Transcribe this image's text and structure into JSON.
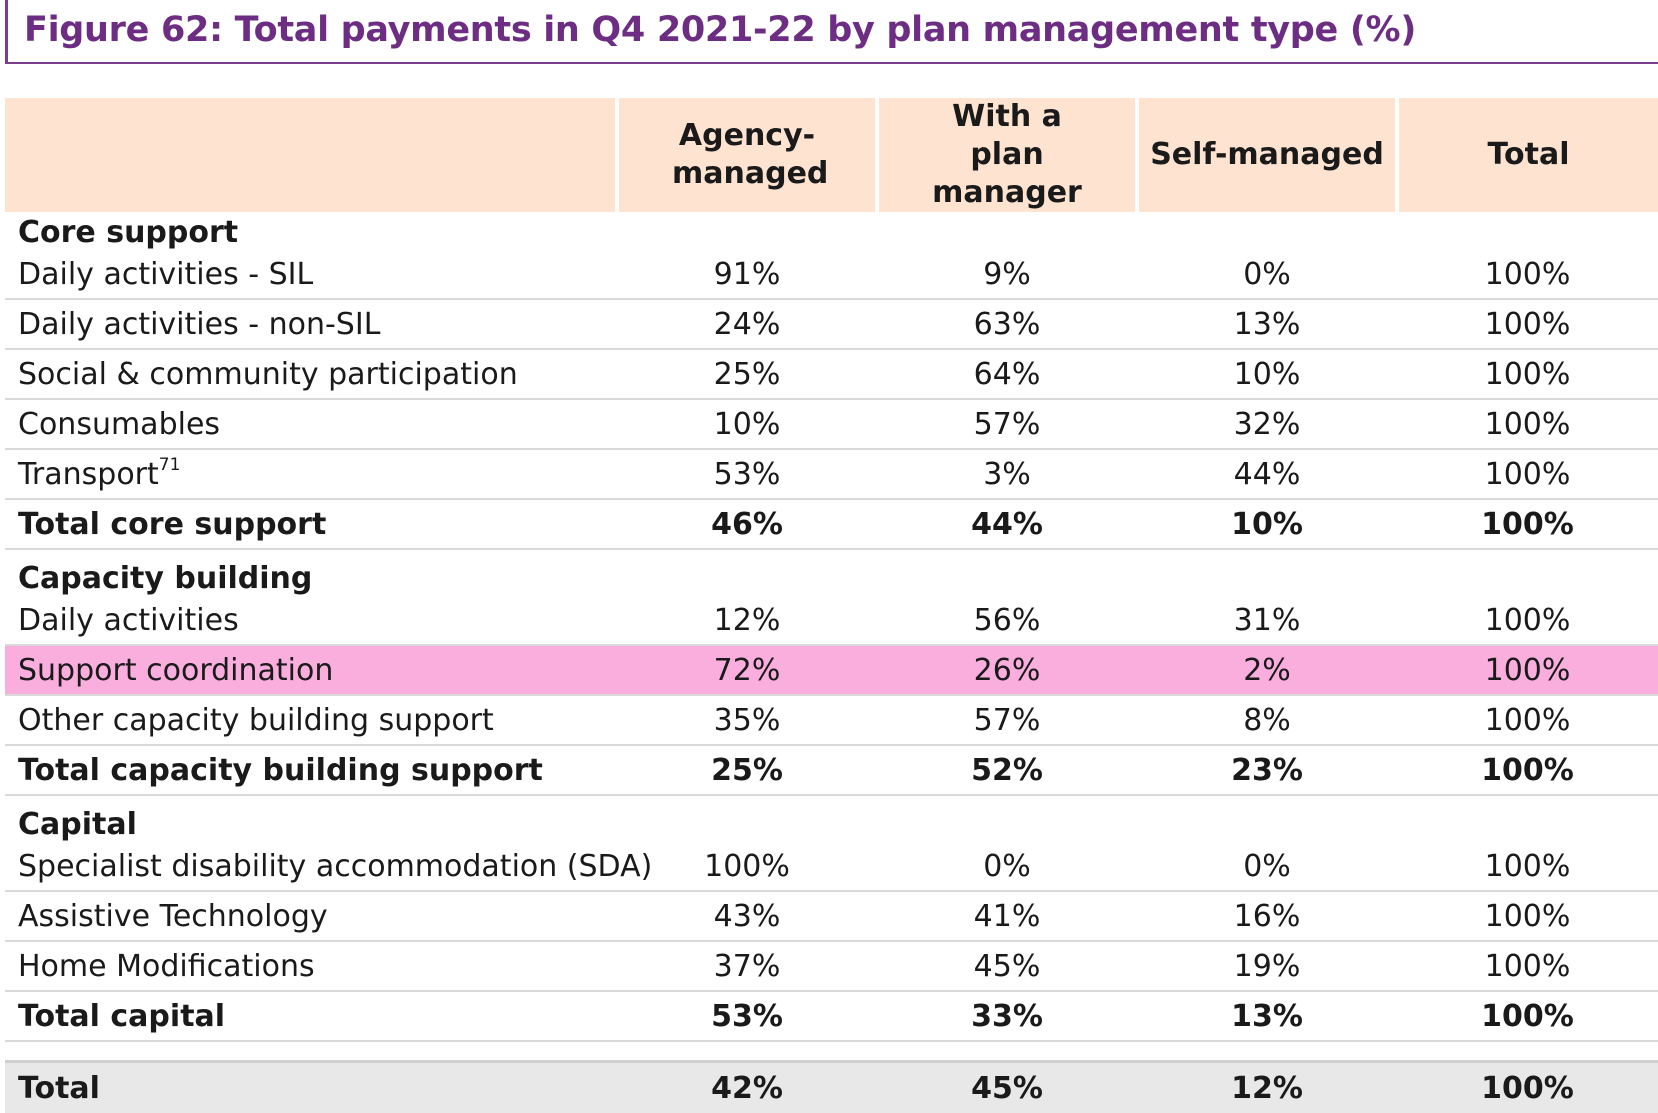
{
  "title": "Figure 62: Total payments in Q4 2021-22 by plan management type (%)",
  "header": {
    "blank": "",
    "agency": "Agency-managed",
    "planmgr": "With a plan manager",
    "self": "Self-managed",
    "total": "Total"
  },
  "sections": [
    {
      "heading": "Core support",
      "rows": [
        {
          "label": "Daily activities - SIL",
          "agency": "91%",
          "planmgr": "9%",
          "self": "0%",
          "total": "100%"
        },
        {
          "label": "Daily activities - non-SIL",
          "agency": "24%",
          "planmgr": "63%",
          "self": "13%",
          "total": "100%"
        },
        {
          "label": "Social & community participation",
          "agency": "25%",
          "planmgr": "64%",
          "self": "10%",
          "total": "100%"
        },
        {
          "label": "Consumables",
          "agency": "10%",
          "planmgr": "57%",
          "self": "32%",
          "total": "100%"
        },
        {
          "label": "Transport",
          "footnote": "71",
          "agency": "53%",
          "planmgr": "3%",
          "self": "44%",
          "total": "100%"
        }
      ],
      "total": {
        "label": "Total core support",
        "agency": "46%",
        "planmgr": "44%",
        "self": "10%",
        "total": "100%"
      }
    },
    {
      "heading": "Capacity building",
      "rows": [
        {
          "label": "Daily activities",
          "agency": "12%",
          "planmgr": "56%",
          "self": "31%",
          "total": "100%"
        },
        {
          "label": "Support coordination",
          "agency": "72%",
          "planmgr": "26%",
          "self": "2%",
          "total": "100%"
        },
        {
          "label": "Other capacity building support",
          "agency": "35%",
          "planmgr": "57%",
          "self": "8%",
          "total": "100%"
        }
      ],
      "total": {
        "label": "Total capacity building support",
        "agency": "25%",
        "planmgr": "52%",
        "self": "23%",
        "total": "100%"
      }
    },
    {
      "heading": "Capital",
      "rows": [
        {
          "label": "Specialist disability accommodation (SDA)",
          "agency": "100%",
          "planmgr": "0%",
          "self": "0%",
          "total": "100%"
        },
        {
          "label": "Assistive Technology",
          "agency": "43%",
          "planmgr": "41%",
          "self": "16%",
          "total": "100%"
        },
        {
          "label": "Home Modifications",
          "agency": "37%",
          "planmgr": "45%",
          "self": "19%",
          "total": "100%"
        }
      ],
      "total": {
        "label": "Total capital",
        "agency": "53%",
        "planmgr": "33%",
        "self": "13%",
        "total": "100%"
      }
    }
  ],
  "grand_total": {
    "label": "Total",
    "agency": "42%",
    "planmgr": "45%",
    "self": "12%",
    "total": "100%"
  },
  "colors": {
    "title": "#6c2d83",
    "header_bg": "#fde3d0",
    "highlight": "#f9aedd",
    "total_bg": "#e8e8e8"
  }
}
